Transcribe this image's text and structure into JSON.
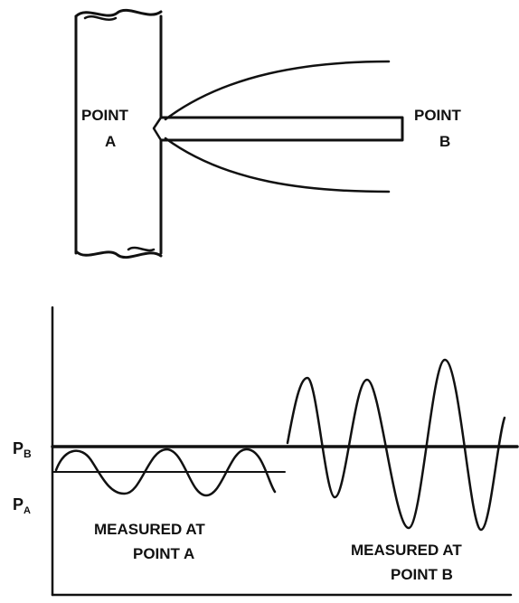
{
  "diagram": {
    "labels": {
      "point_a": [
        "POINT",
        "A"
      ],
      "point_b": [
        "POINT",
        "B"
      ],
      "measured_a": [
        "MEASURED AT",
        "POINT A"
      ],
      "measured_b": [
        "MEASURED AT",
        "POINT B"
      ],
      "p_b": "P",
      "p_b_sub": "B",
      "p_a": "P",
      "p_a_sub": "A"
    },
    "ink_color": "#111111",
    "background_color": "#ffffff"
  }
}
